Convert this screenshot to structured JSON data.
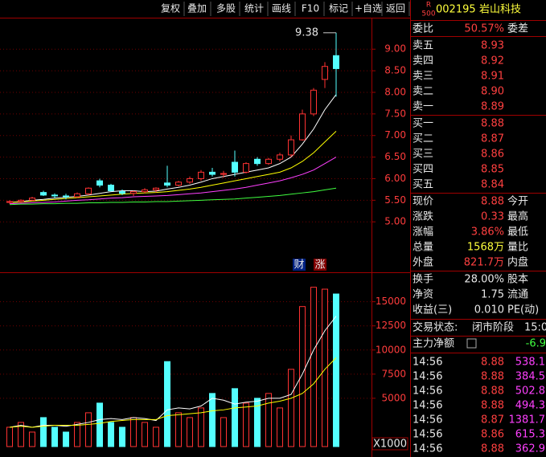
{
  "toolbar": [
    "复权",
    "叠加",
    "多股",
    "统计",
    "画线",
    "F10",
    "标记",
    "+自选",
    "返回"
  ],
  "chart_data": [
    {
      "type": "candlestick",
      "open": [
        5.45,
        5.47,
        5.5,
        5.68,
        5.62,
        5.6,
        5.58,
        5.65,
        5.95,
        5.85,
        5.7,
        5.66,
        5.7,
        5.74,
        5.9,
        5.85,
        5.92,
        6.0,
        6.15,
        6.1,
        6.38,
        6.15,
        6.45,
        6.35,
        6.45,
        6.55,
        6.9,
        7.5,
        8.3,
        8.85
      ],
      "high": [
        5.5,
        5.52,
        5.58,
        5.72,
        5.66,
        5.65,
        5.68,
        5.8,
        6.0,
        5.88,
        5.75,
        5.72,
        5.78,
        5.8,
        6.3,
        5.95,
        6.05,
        6.2,
        6.25,
        6.18,
        6.65,
        6.38,
        6.5,
        6.48,
        6.6,
        7.0,
        7.6,
        8.1,
        8.7,
        9.38
      ],
      "low": [
        5.42,
        5.44,
        5.48,
        5.6,
        5.55,
        5.52,
        5.55,
        5.62,
        5.8,
        5.7,
        5.62,
        5.6,
        5.66,
        5.68,
        5.8,
        5.82,
        5.88,
        5.95,
        6.05,
        6.02,
        6.05,
        6.12,
        6.3,
        6.32,
        6.4,
        6.5,
        6.88,
        7.45,
        8.1,
        7.9
      ],
      "close": [
        5.47,
        5.5,
        5.55,
        5.62,
        5.6,
        5.58,
        5.65,
        5.78,
        5.85,
        5.72,
        5.66,
        5.7,
        5.74,
        5.78,
        5.85,
        5.92,
        6.0,
        6.15,
        6.1,
        6.12,
        6.15,
        6.35,
        6.35,
        6.45,
        6.55,
        6.9,
        7.5,
        8.05,
        8.6,
        8.55
      ],
      "up_color": "#ff3232",
      "down_color": "#54ffff",
      "series": [
        {
          "color": "#ffffff",
          "values": [
            5.45,
            5.47,
            5.5,
            5.52,
            5.55,
            5.57,
            5.59,
            5.62,
            5.66,
            5.7,
            5.72,
            5.72,
            5.7,
            5.71,
            5.76,
            5.8,
            5.85,
            5.92,
            6.0,
            6.05,
            6.1,
            6.15,
            6.2,
            6.25,
            6.35,
            6.5,
            6.8,
            7.15,
            7.6,
            7.95
          ]
        },
        {
          "color": "#ffff00",
          "values": [
            5.45,
            5.46,
            5.48,
            5.5,
            5.52,
            5.54,
            5.56,
            5.58,
            5.6,
            5.62,
            5.64,
            5.66,
            5.67,
            5.68,
            5.7,
            5.73,
            5.76,
            5.8,
            5.85,
            5.9,
            5.95,
            6.0,
            6.05,
            6.1,
            6.15,
            6.25,
            6.4,
            6.6,
            6.85,
            7.1
          ]
        },
        {
          "color": "#ff40ff",
          "values": [
            5.42,
            5.43,
            5.44,
            5.45,
            5.46,
            5.48,
            5.5,
            5.51,
            5.53,
            5.55,
            5.56,
            5.58,
            5.59,
            5.6,
            5.61,
            5.63,
            5.65,
            5.67,
            5.7,
            5.73,
            5.76,
            5.8,
            5.85,
            5.9,
            5.95,
            6.02,
            6.1,
            6.2,
            6.35,
            6.5
          ]
        },
        {
          "color": "#40ff40",
          "values": [
            5.4,
            5.41,
            5.41,
            5.42,
            5.42,
            5.43,
            5.43,
            5.44,
            5.44,
            5.45,
            5.45,
            5.46,
            5.46,
            5.47,
            5.47,
            5.48,
            5.49,
            5.5,
            5.51,
            5.52,
            5.53,
            5.55,
            5.57,
            5.59,
            5.61,
            5.64,
            5.67,
            5.7,
            5.74,
            5.78
          ]
        }
      ],
      "ylim": [
        3.85,
        9.73
      ],
      "yticks": [
        {
          "value": 5,
          "label": "5.00"
        },
        {
          "value": 5.5,
          "label": "5.50"
        },
        {
          "value": 6,
          "label": "6.00"
        },
        {
          "value": 6.5,
          "label": "6.50"
        },
        {
          "value": 7,
          "label": "7.00"
        },
        {
          "value": 7.5,
          "label": "7.50"
        },
        {
          "value": 8,
          "label": "8.00"
        },
        {
          "value": 8.5,
          "label": "8.50"
        },
        {
          "value": 9,
          "label": "9.00"
        }
      ],
      "badges": [
        "财",
        "涨"
      ]
    },
    {
      "type": "bar",
      "values": [
        2000,
        2500,
        1500,
        3000,
        2000,
        1500,
        2500,
        3500,
        4500,
        2500,
        2000,
        3000,
        2500,
        2000,
        8800,
        3500,
        3000,
        4000,
        5500,
        3000,
        6000,
        4500,
        5000,
        5500,
        4000,
        8000,
        14500,
        16500,
        16300,
        15800
      ],
      "series": [
        {
          "color": "#ffffff",
          "values": [
            2000,
            2200,
            2000,
            2200,
            2200,
            2100,
            2300,
            2500,
            2800,
            2900,
            2800,
            3000,
            2900,
            2700,
            3800,
            4000,
            3900,
            4200,
            5000,
            4800,
            4400,
            4600,
            4700,
            5000,
            5000,
            5400,
            7500,
            10000,
            12000,
            13500
          ]
        },
        {
          "color": "#ffff00",
          "values": [
            2000,
            2100,
            2000,
            2100,
            2200,
            2200,
            2200,
            2300,
            2400,
            2600,
            2700,
            2800,
            2800,
            2800,
            3200,
            3300,
            3400,
            3500,
            3700,
            3800,
            4000,
            4100,
            4200,
            4500,
            4700,
            5000,
            5500,
            6500,
            8000,
            9200
          ]
        }
      ],
      "ylim": [
        0,
        17800
      ],
      "yticks": [
        5000,
        7500,
        10000,
        12500,
        15000
      ],
      "unit_label": "X1000"
    }
  ],
  "quote": {
    "market": [
      "R",
      "500"
    ],
    "code": "002195",
    "name": "岩山科技",
    "weibi": [
      "委比",
      "50.57%",
      "委差"
    ],
    "asks": [
      [
        "卖五",
        "8.93"
      ],
      [
        "卖四",
        "8.92"
      ],
      [
        "卖三",
        "8.91"
      ],
      [
        "卖二",
        "8.90"
      ],
      [
        "卖一",
        "8.89"
      ]
    ],
    "bids": [
      [
        "买一",
        "8.88"
      ],
      [
        "买二",
        "8.87"
      ],
      [
        "买三",
        "8.86"
      ],
      [
        "买四",
        "8.85"
      ],
      [
        "买五",
        "8.84"
      ]
    ],
    "stats": [
      [
        "现价",
        "8.88",
        "今开"
      ],
      [
        "涨跌",
        "0.33",
        "最高"
      ],
      [
        "涨幅",
        "3.86%",
        "最低"
      ],
      [
        "总量",
        "1568万",
        "量比"
      ],
      [
        "外盘",
        "821.7万",
        "内盘"
      ]
    ],
    "stats2": [
      [
        "换手",
        "28.00%",
        "股本"
      ],
      [
        "净资",
        "1.75",
        "流通"
      ],
      [
        "收益(三)",
        "0.010",
        "PE(动)"
      ]
    ],
    "status": [
      "交易状态:",
      "闭市阶段",
      "15:0"
    ],
    "main_net": [
      "主力净额",
      "-6.9"
    ],
    "trades": [
      [
        "14:56",
        "8.88",
        "538.1"
      ],
      [
        "14:56",
        "8.88",
        "384.5"
      ],
      [
        "14:56",
        "8.88",
        "502.8"
      ],
      [
        "14:56",
        "8.88",
        "494.3"
      ],
      [
        "14:56",
        "8.87",
        "1381.7"
      ],
      [
        "14:56",
        "8.86",
        "615.3"
      ],
      [
        "14:56",
        "8.88",
        "362.9"
      ]
    ]
  }
}
